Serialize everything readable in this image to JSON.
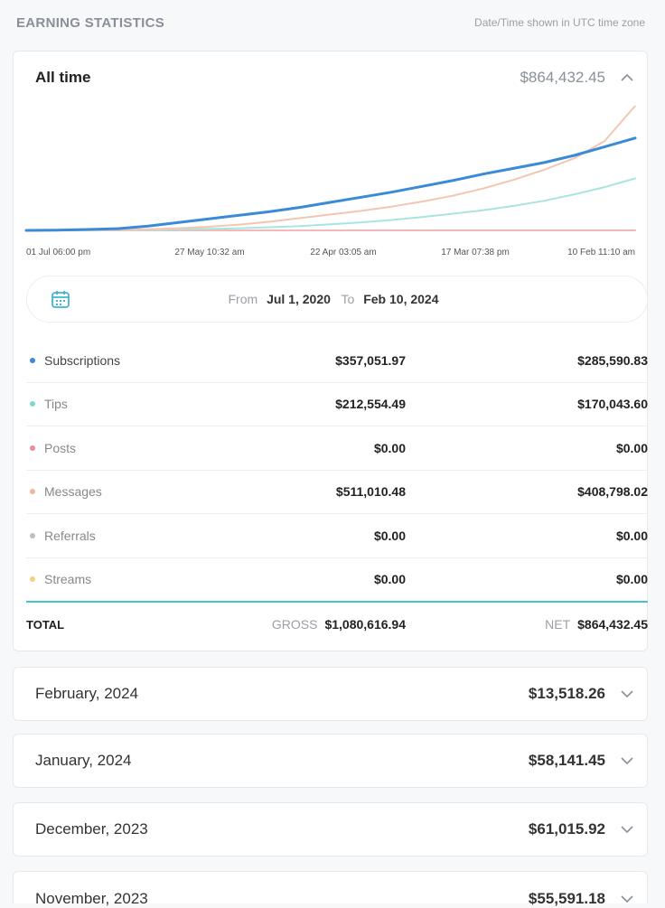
{
  "header": {
    "title": "EARNING STATISTICS",
    "timezone_note": "Date/Time shown in UTC time zone"
  },
  "main_card": {
    "label": "All time",
    "amount": "$864,432.45",
    "date_range": {
      "from_label": "From",
      "from_value": "Jul 1, 2020",
      "to_label": "To",
      "to_value": "Feb 10, 2024"
    }
  },
  "chart_data": {
    "type": "line",
    "x_tick_labels": [
      "01 Jul 06:00 pm",
      "27 May 10:32 am",
      "22 Apr 03:05 am",
      "17 Mar 07:38 pm",
      "10 Feb 11:10 am"
    ],
    "grid": false,
    "legend": "none",
    "ylim": [
      0,
      864432.45
    ],
    "series": [
      {
        "name": "Subscriptions",
        "color": "#3a8ad8",
        "values": [
          0,
          2000,
          6000,
          12000,
          30000,
          55000,
          80000,
          105000,
          130000,
          160000,
          195000,
          230000,
          265000,
          305000,
          345000,
          390000,
          430000,
          470000,
          520000,
          580000,
          640000
        ]
      },
      {
        "name": "Messages",
        "color": "#f3c6b1",
        "values": [
          0,
          500,
          1500,
          3000,
          8000,
          15000,
          25000,
          40000,
          60000,
          85000,
          110000,
          135000,
          165000,
          200000,
          240000,
          290000,
          350000,
          420000,
          500000,
          620000,
          864000
        ]
      },
      {
        "name": "Tips",
        "color": "#a8e6dd",
        "values": [
          0,
          200,
          500,
          1000,
          3000,
          6000,
          10000,
          15000,
          22000,
          30000,
          42000,
          56000,
          72000,
          92000,
          115000,
          140000,
          170000,
          205000,
          250000,
          300000,
          360000
        ]
      },
      {
        "name": "Posts",
        "color": "#f5b7b7",
        "values": [
          0,
          0,
          0,
          0,
          0,
          0,
          0,
          0,
          0,
          0,
          0,
          0,
          0,
          0,
          0,
          0,
          0,
          0,
          0,
          0,
          0
        ]
      }
    ]
  },
  "breakdown": {
    "rows": [
      {
        "name": "Subscriptions",
        "color": "#3a8ad8",
        "gross": "$357,051.97",
        "net": "$285,590.83"
      },
      {
        "name": "Tips",
        "color": "#7fd8cf",
        "gross": "$212,554.49",
        "net": "$170,043.60"
      },
      {
        "name": "Posts",
        "color": "#f08c9a",
        "gross": "$0.00",
        "net": "$0.00"
      },
      {
        "name": "Messages",
        "color": "#f5b59a",
        "gross": "$511,010.48",
        "net": "$408,798.02"
      },
      {
        "name": "Referrals",
        "color": "#b9bec4",
        "gross": "$0.00",
        "net": "$0.00"
      },
      {
        "name": "Streams",
        "color": "#f3d27a",
        "gross": "$0.00",
        "net": "$0.00"
      }
    ],
    "total": {
      "label": "TOTAL",
      "gross_label": "GROSS",
      "gross": "$1,080,616.94",
      "net_label": "NET",
      "net": "$864,432.45"
    }
  },
  "months": [
    {
      "label": "February, 2024",
      "amount": "$13,518.26"
    },
    {
      "label": "January, 2024",
      "amount": "$58,141.45"
    },
    {
      "label": "December, 2023",
      "amount": "$61,015.92"
    },
    {
      "label": "November, 2023",
      "amount": "$55,591.18"
    }
  ],
  "icons": {
    "collapse": "chevron-up-icon",
    "expand": "chevron-down-icon",
    "calendar": "calendar-icon"
  }
}
